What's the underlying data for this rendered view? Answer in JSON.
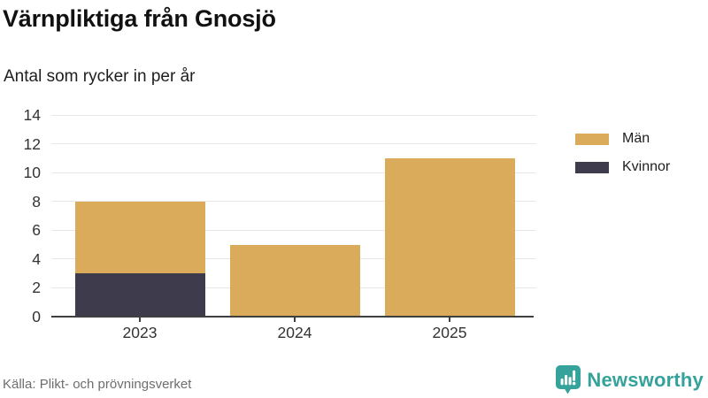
{
  "header": {
    "title": "Värnpliktiga från Gnosjö",
    "subtitle": "Antal som rycker in per år"
  },
  "footer": {
    "source": "Källa: Plikt- och prövningsverket",
    "brand": "Newsworthy"
  },
  "colors": {
    "men": "#d9ab5b",
    "women": "#3e3c4c",
    "axis": "#3f3f3f",
    "grid": "#e7e7e7",
    "brand_teal": "#35a29b"
  },
  "chart_data": {
    "type": "bar",
    "stacked": true,
    "title": "Värnpliktiga från Gnosjö",
    "subtitle": "Antal som rycker in per år",
    "categories": [
      "2023",
      "2024",
      "2025"
    ],
    "series": [
      {
        "name": "Män",
        "color_key": "men",
        "values": [
          5,
          5,
          11
        ]
      },
      {
        "name": "Kvinnor",
        "color_key": "women",
        "values": [
          3,
          0,
          0
        ]
      }
    ],
    "stack_order_bottom_first": [
      "Kvinnor",
      "Män"
    ],
    "totals": [
      8,
      5,
      11
    ],
    "xlabel": "",
    "ylabel": "",
    "ylim": [
      0,
      14
    ],
    "ytick_step": 2,
    "yticks": [
      0,
      2,
      4,
      6,
      8,
      10,
      12,
      14
    ],
    "grid": true,
    "legend_position": "right"
  }
}
